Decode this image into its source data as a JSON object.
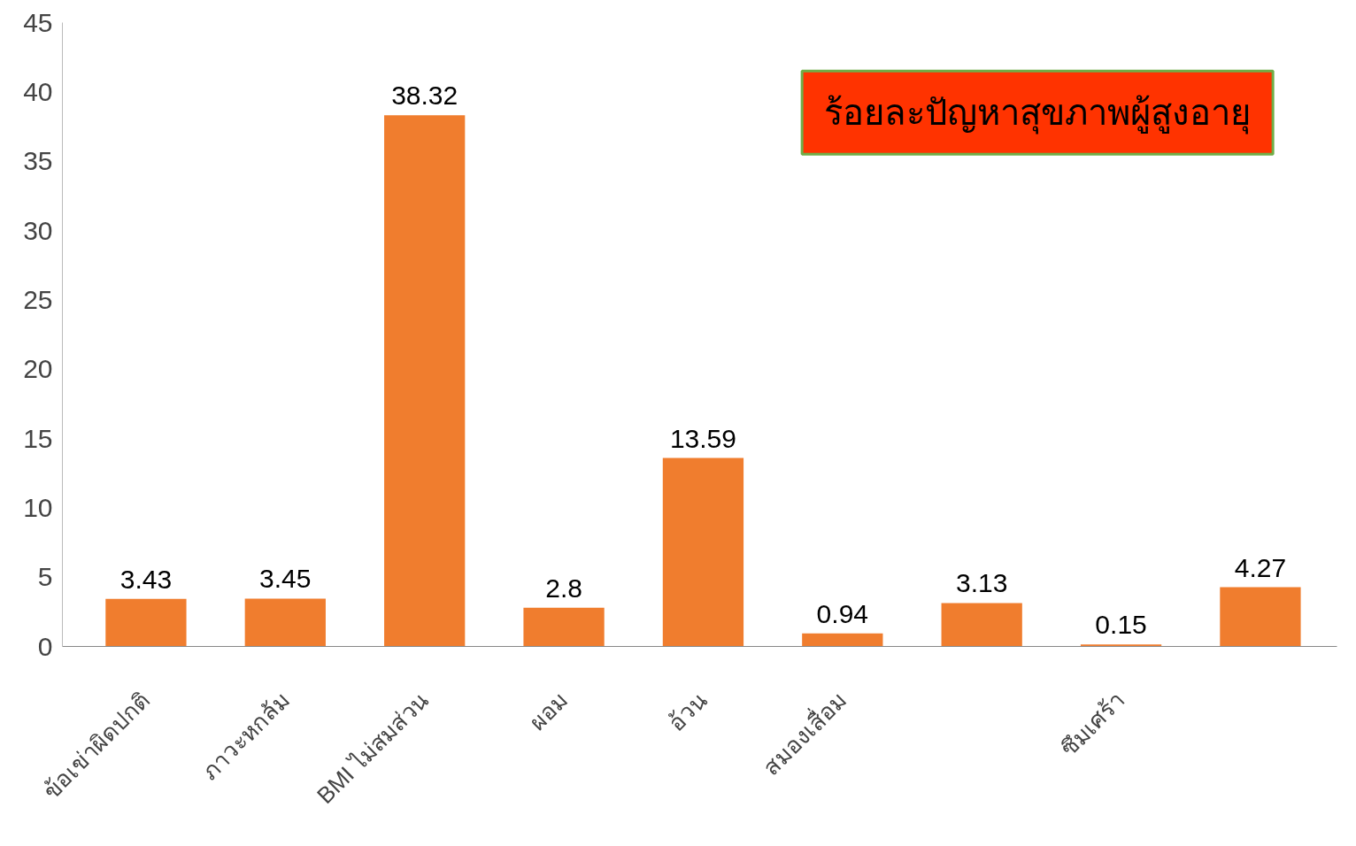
{
  "chart_data": {
    "type": "bar",
    "title": "ร้อยละปัญหาสุขภาพผู้สูงอายุ",
    "categories": [
      "ข้อเข่าผิดปกติ",
      "ภาวะหกล้ม",
      "BMI ไม่สมส่วน",
      "ผอม",
      "อ้วน",
      "สมองเสื่อม",
      null,
      "ซึมเศร้า",
      null
    ],
    "values": [
      3.43,
      3.45,
      38.32,
      2.8,
      13.59,
      0.94,
      3.13,
      0.15,
      4.27
    ],
    "color": "#f07d2e",
    "ylim": [
      0,
      45
    ],
    "yticks": [
      0,
      5,
      10,
      15,
      20,
      25,
      30,
      35,
      40,
      45
    ],
    "grid": false,
    "data_labels": true
  }
}
